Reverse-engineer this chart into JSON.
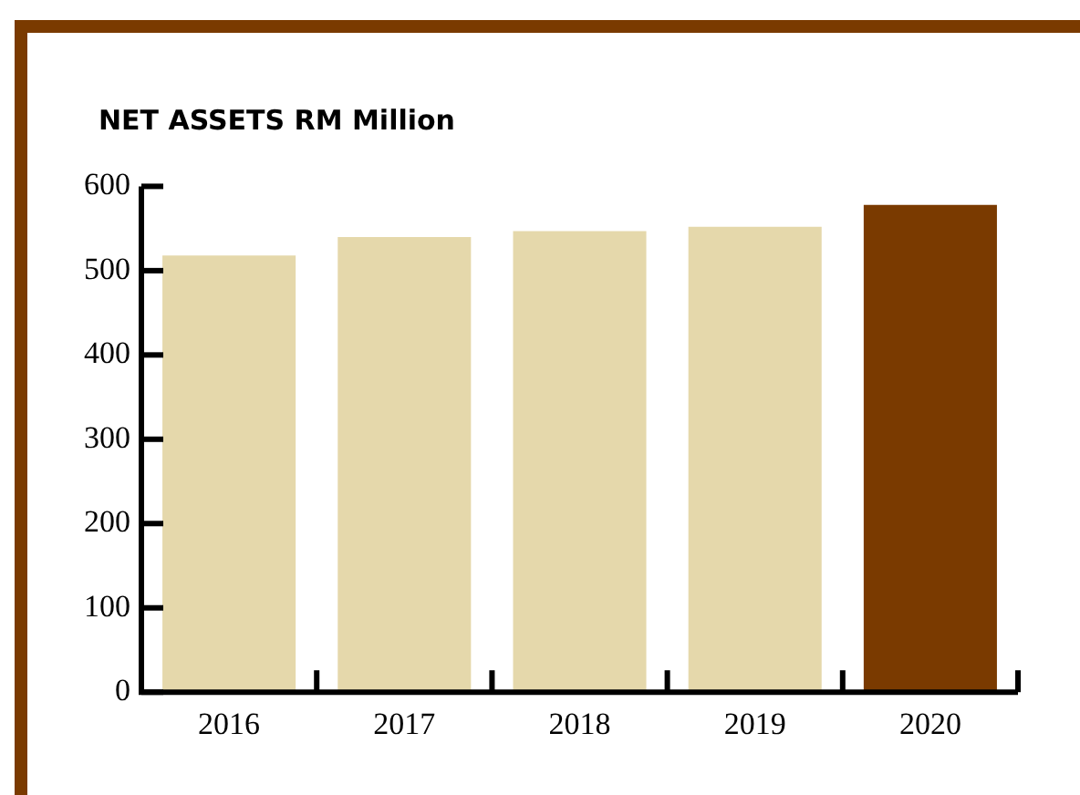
{
  "chart_data": {
    "type": "bar",
    "title": "NET ASSETS RM Million",
    "categories": [
      "2016",
      "2017",
      "2018",
      "2019",
      "2020"
    ],
    "values": [
      518,
      540,
      547,
      552,
      578
    ],
    "colors": [
      "#e5d8ab",
      "#e5d8ab",
      "#e5d8ab",
      "#e5d8ab",
      "#7a3a00"
    ],
    "ylim": [
      0,
      600
    ],
    "yticks": [
      0,
      100,
      200,
      300,
      400,
      500,
      600
    ],
    "grid": false,
    "legend": false
  }
}
